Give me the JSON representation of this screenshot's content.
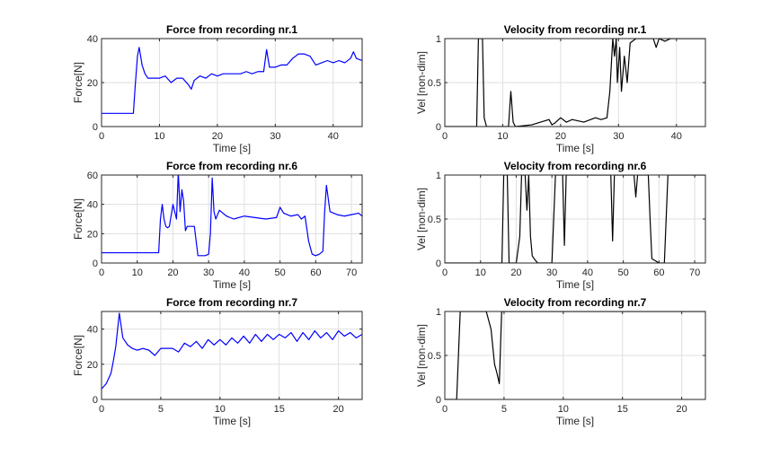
{
  "chart_data": [
    {
      "type": "line",
      "title": "Force from recording nr.1",
      "xlabel": "Time [s]",
      "ylabel": "Force[N]",
      "xlim": [
        0,
        45
      ],
      "ylim": [
        0,
        40
      ],
      "xticks": [
        0,
        10,
        20,
        30,
        40
      ],
      "yticks": [
        0,
        20,
        40
      ],
      "grid": true,
      "color": "#0000ff",
      "x": [
        0,
        5.5,
        5.8,
        6.2,
        6.5,
        7,
        7.5,
        8,
        9,
        10,
        11,
        12,
        13,
        14,
        15,
        15.5,
        16,
        17,
        18,
        19,
        20,
        21,
        22,
        23,
        24,
        25,
        26,
        27,
        28,
        28.5,
        29,
        30,
        31,
        32,
        33,
        34,
        35,
        36,
        37,
        38,
        39,
        40,
        41,
        42,
        43,
        43.5,
        44,
        45
      ],
      "y": [
        6,
        6,
        18,
        32,
        36,
        28,
        24,
        22,
        22,
        22,
        23,
        20,
        22,
        22,
        19,
        17,
        21,
        23,
        22,
        24,
        23,
        24,
        24,
        24,
        24,
        25,
        24,
        25,
        25,
        35,
        27,
        27,
        28,
        28,
        31,
        33,
        33,
        32,
        28,
        29,
        30,
        29,
        30,
        29,
        31,
        34,
        31,
        30
      ]
    },
    {
      "type": "line",
      "title": "Velocity from recording nr.1",
      "xlabel": "Time [s]",
      "ylabel": "Vel [non-dim]",
      "xlim": [
        0,
        45
      ],
      "ylim": [
        0,
        1
      ],
      "xticks": [
        0,
        10,
        20,
        30,
        40
      ],
      "yticks": [
        0,
        0.5,
        1
      ],
      "grid": true,
      "color": "#000000",
      "x": [
        0,
        5.5,
        5.8,
        6.5,
        6.8,
        7.2,
        11,
        11.4,
        11.8,
        12.2,
        15,
        18,
        18.5,
        19,
        20,
        21,
        22,
        24,
        26,
        27,
        28,
        28.5,
        29,
        29.3,
        29.6,
        29.8,
        30.2,
        30.5,
        31,
        31.5,
        32,
        33,
        35,
        36,
        36.5,
        37,
        38,
        39,
        40,
        45
      ],
      "y": [
        0,
        0,
        1,
        1,
        0.1,
        0,
        0,
        0.4,
        0.05,
        0,
        0.02,
        0.08,
        0.02,
        0.04,
        0.1,
        0.05,
        0.08,
        0.05,
        0.1,
        0.08,
        0.1,
        0.4,
        1,
        0.8,
        1,
        0.5,
        0.9,
        0.4,
        0.8,
        0.5,
        0.95,
        1,
        1,
        1,
        0.9,
        1,
        0.97,
        1,
        1,
        1
      ]
    },
    {
      "type": "line",
      "title": "Force from recording nr.6",
      "xlabel": "Time [s]",
      "ylabel": "Force[N]",
      "xlim": [
        0,
        73
      ],
      "ylim": [
        0,
        60
      ],
      "xticks": [
        0,
        10,
        20,
        30,
        40,
        50,
        60,
        70
      ],
      "yticks": [
        0,
        20,
        40,
        60
      ],
      "grid": true,
      "color": "#0000ff",
      "x": [
        0,
        16,
        16.5,
        17,
        17.5,
        18,
        18.5,
        19,
        20,
        21,
        21.5,
        22,
        22.5,
        23,
        23.5,
        24,
        25,
        26,
        27,
        28,
        29,
        30,
        30.5,
        31,
        31.5,
        32,
        33,
        35,
        37,
        40,
        43,
        46,
        49,
        50,
        51,
        53,
        55,
        56,
        57,
        58,
        59,
        60,
        61,
        62,
        62.5,
        63,
        64,
        66,
        68,
        70,
        72,
        73
      ],
      "y": [
        7,
        7,
        30,
        40,
        30,
        25,
        24,
        25,
        40,
        30,
        62,
        35,
        50,
        42,
        22,
        25,
        25,
        25,
        5,
        5,
        5,
        6,
        20,
        58,
        35,
        30,
        36,
        32,
        30,
        32,
        31,
        30,
        31,
        38,
        34,
        32,
        33,
        30,
        32,
        15,
        6,
        5,
        6,
        8,
        35,
        53,
        35,
        33,
        32,
        33,
        34,
        32
      ]
    },
    {
      "type": "line",
      "title": "Velocity from recording nr.6",
      "xlabel": "Time [s]",
      "ylabel": "Vel [non-dim]",
      "xlim": [
        0,
        73
      ],
      "ylim": [
        0,
        1
      ],
      "xticks": [
        0,
        10,
        20,
        30,
        40,
        50,
        60,
        70
      ],
      "yticks": [
        0,
        0.5,
        1
      ],
      "grid": true,
      "color": "#000000",
      "x": [
        0,
        16,
        16.5,
        17.5,
        18,
        20,
        21,
        21.5,
        22.5,
        23,
        23.5,
        24,
        24.5,
        25,
        26,
        27,
        29,
        30,
        31,
        31.5,
        33,
        33.5,
        34,
        34.5,
        36,
        40,
        44,
        46,
        46.5,
        47,
        47.5,
        48,
        52,
        53,
        53.5,
        54,
        55,
        56,
        57,
        57.5,
        58,
        60,
        61,
        61.5,
        62,
        62.5,
        63,
        73
      ],
      "y": [
        0,
        0,
        1,
        1,
        0,
        0,
        0.3,
        1,
        1,
        0.6,
        1,
        0.3,
        0.08,
        0.05,
        0,
        0,
        0,
        0,
        1,
        1,
        1,
        0.2,
        1,
        1,
        1,
        1,
        1,
        1,
        1,
        0.25,
        1,
        1,
        1,
        1,
        0.75,
        1,
        1,
        1,
        1,
        0.5,
        0.05,
        0,
        0,
        0,
        0.5,
        1,
        1,
        1
      ]
    },
    {
      "type": "line",
      "title": "Force from recording nr.7",
      "xlabel": "Time [s]",
      "ylabel": "Force[N]",
      "xlim": [
        0,
        22
      ],
      "ylim": [
        0,
        50
      ],
      "xticks": [
        0,
        5,
        10,
        15,
        20
      ],
      "yticks": [
        0,
        20,
        40
      ],
      "grid": true,
      "color": "#0000ff",
      "x": [
        0,
        0.4,
        0.8,
        1.0,
        1.2,
        1.5,
        1.8,
        2.2,
        2.6,
        3,
        3.5,
        4,
        4.5,
        5,
        5.5,
        6,
        6.5,
        7,
        7.5,
        8,
        8.5,
        9,
        9.5,
        10,
        10.5,
        11,
        11.5,
        12,
        12.5,
        13,
        13.5,
        14,
        14.5,
        15,
        15.5,
        16,
        16.5,
        17,
        17.5,
        18,
        18.5,
        19,
        19.5,
        20,
        20.5,
        21,
        21.5,
        22
      ],
      "y": [
        6,
        9,
        15,
        22,
        30,
        49,
        35,
        31,
        29,
        28,
        29,
        28,
        25,
        29,
        29,
        29,
        27,
        32,
        30,
        33,
        29,
        34,
        31,
        34,
        31,
        35,
        32,
        36,
        32,
        37,
        33,
        37,
        34,
        37,
        35,
        38,
        33,
        38,
        34,
        39,
        35,
        38,
        34,
        39,
        36,
        38,
        35,
        37
      ]
    },
    {
      "type": "line",
      "title": "Velocity from recording nr.7",
      "xlabel": "Time [s]",
      "ylabel": "Vel [non-dim]",
      "xlim": [
        0,
        22
      ],
      "ylim": [
        0,
        1
      ],
      "xticks": [
        0,
        5,
        10,
        15,
        20
      ],
      "yticks": [
        0,
        0.5,
        1
      ],
      "grid": true,
      "color": "#000000",
      "x": [
        0,
        1.0,
        1.3,
        1.6,
        2.5,
        3.5,
        3.9,
        4.2,
        4.4,
        4.6,
        4.8,
        5.0,
        8,
        12,
        16,
        22
      ],
      "y": [
        0,
        0,
        1,
        1,
        1,
        1,
        0.8,
        0.4,
        0.3,
        0.18,
        1,
        1,
        1,
        1,
        1,
        1
      ]
    }
  ]
}
